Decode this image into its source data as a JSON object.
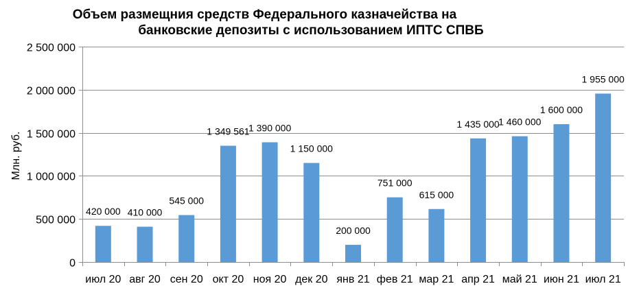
{
  "chart_data": {
    "type": "bar",
    "title_lines": [
      "Объем размещния средств Федерального казначейства на",
      "банковские депозиты с использованием ИПТС СПВБ"
    ],
    "xlabel": "",
    "ylabel": "Млн. руб.",
    "ylim": [
      0,
      2500000
    ],
    "yticks": [
      0,
      500000,
      1000000,
      1500000,
      2000000,
      2500000
    ],
    "ytick_labels": [
      "0",
      "500 000",
      "1 000 000",
      "1 500 000",
      "2 000 000",
      "2 500 000"
    ],
    "grid": true,
    "legend": "none",
    "bar_color": "#5B9BD5",
    "categories": [
      "июл 20",
      "авг 20",
      "сен 20",
      "окт 20",
      "ноя 20",
      "дек 20",
      "янв 21",
      "фев 21",
      "мар 21",
      "апр 21",
      "май 21",
      "июн 21",
      "июл 21"
    ],
    "values": [
      420000,
      410000,
      545000,
      1349561,
      1390000,
      1150000,
      200000,
      751000,
      615000,
      1435000,
      1460000,
      1600000,
      1955000
    ],
    "value_labels": [
      "420 000",
      "410 000",
      "545 000",
      "1 349 561",
      "1 390 000",
      "1 150 000",
      "200 000",
      "751 000",
      "615 000",
      "1 435 000",
      "1 460 000",
      "1 600 000",
      "1 955 000"
    ]
  }
}
